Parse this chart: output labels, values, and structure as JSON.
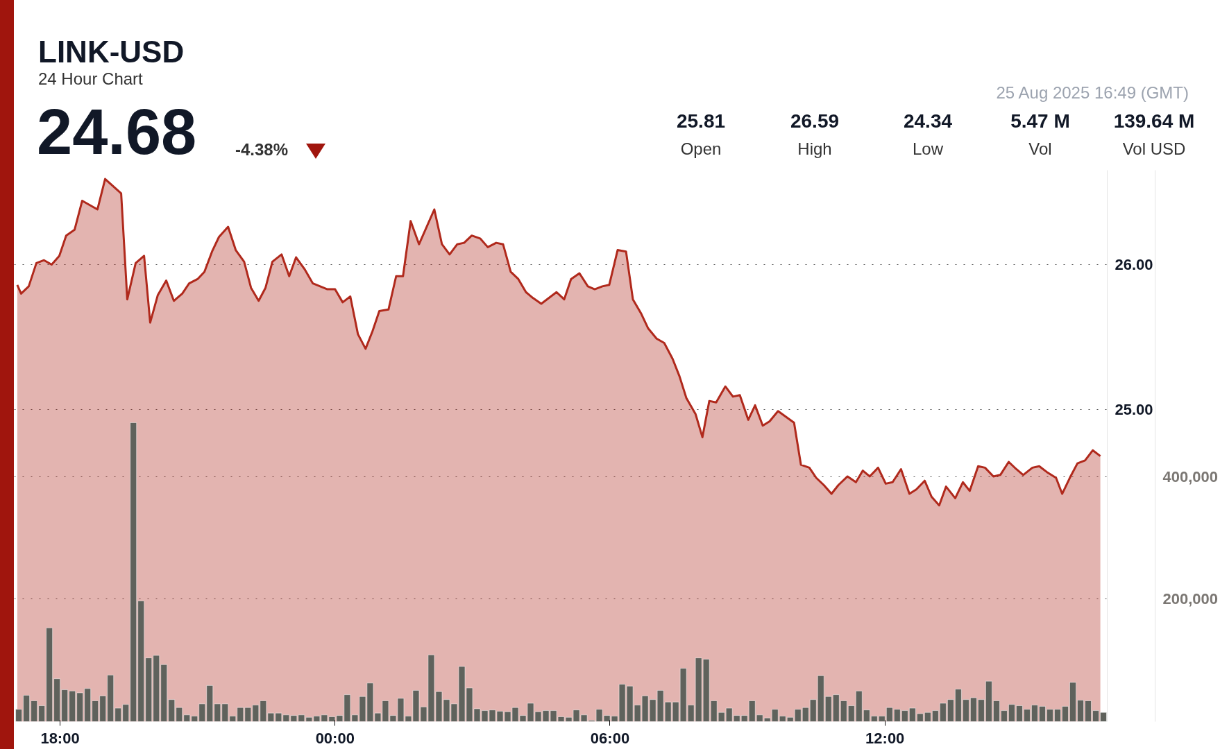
{
  "chart_data": {
    "type": "area",
    "title": "LINK-USD",
    "subtitle": "24 Hour Chart",
    "annotations": [
      "24.68",
      "-4.38%",
      "25 Aug 2025 16:49 (GMT)",
      "25.81",
      "Open",
      "26.59",
      "High",
      "24.34",
      "Low",
      "5.47 M",
      "Vol",
      "139.64 M",
      "Vol USD"
    ],
    "xlim": [
      "2025-08-24T17:00",
      "2025-08-25T16:51"
    ],
    "ylim": [
      22.85,
      26.65
    ],
    "y2lim": [
      0,
      900000
    ],
    "xticks": [
      {
        "value": "2025-08-24T18:00",
        "label": "18:00"
      },
      {
        "value": "2025-08-25T00:00",
        "label": "00:00"
      },
      {
        "value": "2025-08-25T06:00",
        "label": "06:00"
      },
      {
        "value": "2025-08-25T12:00",
        "label": "12:00"
      }
    ],
    "yticks": [
      {
        "value": 25,
        "label": "25.00"
      },
      {
        "value": 26,
        "label": "26.00"
      }
    ],
    "y2ticks": [
      {
        "value": 200000,
        "label": "200,000"
      },
      {
        "value": 400000,
        "label": "400,000"
      }
    ],
    "grid": "y",
    "line_style": "solid",
    "series": [
      {
        "color": "#b0291c",
        "x": [
          "2025-08-24T17:04",
          "2025-08-24T17:09",
          "2025-08-24T17:19",
          "2025-08-24T17:29",
          "2025-08-24T17:39",
          "2025-08-24T17:49",
          "2025-08-24T17:59",
          "2025-08-24T18:08",
          "2025-08-24T18:19",
          "2025-08-24T18:29",
          "2025-08-24T18:49",
          "2025-08-24T18:59",
          "2025-08-24T19:20",
          "2025-08-24T19:28",
          "2025-08-24T19:39",
          "2025-08-24T19:50",
          "2025-08-24T19:58",
          "2025-08-24T20:08",
          "2025-08-24T20:19",
          "2025-08-24T20:29",
          "2025-08-24T20:40",
          "2025-08-24T20:49",
          "2025-08-24T21:00",
          "2025-08-24T21:09",
          "2025-08-24T21:19",
          "2025-08-24T21:28",
          "2025-08-24T21:40",
          "2025-08-24T21:50",
          "2025-08-24T22:01",
          "2025-08-24T22:10",
          "2025-08-24T22:20",
          "2025-08-24T22:29",
          "2025-08-24T22:38",
          "2025-08-24T22:50",
          "2025-08-24T23:00",
          "2025-08-24T23:09",
          "2025-08-24T23:20",
          "2025-08-24T23:31",
          "2025-08-24T23:50",
          "2025-08-25T00:00",
          "2025-08-25T00:10",
          "2025-08-25T00:20",
          "2025-08-25T00:30",
          "2025-08-25T00:40",
          "2025-08-25T00:49",
          "2025-08-25T00:58",
          "2025-08-25T01:10",
          "2025-08-25T01:20",
          "2025-08-25T01:29",
          "2025-08-25T01:39",
          "2025-08-25T01:50",
          "2025-08-25T02:10",
          "2025-08-25T02:20",
          "2025-08-25T02:30",
          "2025-08-25T02:40",
          "2025-08-25T02:49",
          "2025-08-25T02:59",
          "2025-08-25T03:10",
          "2025-08-25T03:20",
          "2025-08-25T03:31",
          "2025-08-25T03:40",
          "2025-08-25T03:50",
          "2025-08-25T04:00",
          "2025-08-25T04:10",
          "2025-08-25T04:19",
          "2025-08-25T04:30",
          "2025-08-25T04:50",
          "2025-08-25T05:00",
          "2025-08-25T05:09",
          "2025-08-25T05:20",
          "2025-08-25T05:31",
          "2025-08-25T05:40",
          "2025-08-25T05:50",
          "2025-08-25T05:59",
          "2025-08-25T06:10",
          "2025-08-25T06:21",
          "2025-08-25T06:30",
          "2025-08-25T06:41",
          "2025-08-25T06:50",
          "2025-08-25T07:01",
          "2025-08-25T07:11",
          "2025-08-25T07:22",
          "2025-08-25T07:31",
          "2025-08-25T07:40",
          "2025-08-25T07:52",
          "2025-08-25T08:01",
          "2025-08-25T08:10",
          "2025-08-25T08:19",
          "2025-08-25T08:31",
          "2025-08-25T08:41",
          "2025-08-25T08:50",
          "2025-08-25T09:01",
          "2025-08-25T09:10",
          "2025-08-25T09:20",
          "2025-08-25T09:29",
          "2025-08-25T09:40",
          "2025-08-25T10:01",
          "2025-08-25T10:10",
          "2025-08-25T10:21",
          "2025-08-25T10:30",
          "2025-08-25T10:40",
          "2025-08-25T10:50",
          "2025-08-25T10:59",
          "2025-08-25T11:11",
          "2025-08-25T11:22",
          "2025-08-25T11:31",
          "2025-08-25T11:40",
          "2025-08-25T11:51",
          "2025-08-25T12:01",
          "2025-08-25T12:10",
          "2025-08-25T12:21",
          "2025-08-25T12:32",
          "2025-08-25T12:41",
          "2025-08-25T12:52",
          "2025-08-25T13:01",
          "2025-08-25T13:11",
          "2025-08-25T13:20",
          "2025-08-25T13:32",
          "2025-08-25T13:42",
          "2025-08-25T13:51",
          "2025-08-25T14:02",
          "2025-08-25T14:11",
          "2025-08-25T14:22",
          "2025-08-25T14:31",
          "2025-08-25T14:42",
          "2025-08-25T14:52",
          "2025-08-25T15:01",
          "2025-08-25T15:13",
          "2025-08-25T15:22",
          "2025-08-25T15:32",
          "2025-08-25T15:44",
          "2025-08-25T15:52",
          "2025-08-25T16:02",
          "2025-08-25T16:12",
          "2025-08-25T16:22",
          "2025-08-25T16:32",
          "2025-08-25T16:42"
        ],
        "values": [
          25.86,
          25.8,
          25.85,
          26.01,
          26.03,
          26.0,
          26.06,
          26.2,
          26.24,
          26.44,
          26.38,
          26.59,
          26.49,
          25.76,
          26.01,
          26.06,
          25.6,
          25.79,
          25.89,
          25.75,
          25.8,
          25.87,
          25.9,
          25.95,
          26.09,
          26.19,
          26.26,
          26.1,
          26.02,
          25.84,
          25.75,
          25.84,
          26.02,
          26.07,
          25.92,
          26.05,
          25.97,
          25.87,
          25.83,
          25.83,
          25.74,
          25.78,
          25.52,
          25.42,
          25.54,
          25.68,
          25.69,
          25.92,
          25.92,
          26.3,
          26.14,
          26.38,
          26.14,
          26.07,
          26.14,
          26.15,
          26.2,
          26.18,
          26.12,
          26.15,
          26.14,
          25.95,
          25.9,
          25.81,
          25.77,
          25.73,
          25.81,
          25.76,
          25.9,
          25.94,
          25.85,
          25.83,
          25.85,
          25.86,
          26.1,
          26.09,
          25.76,
          25.66,
          25.56,
          25.49,
          25.46,
          25.35,
          25.23,
          25.08,
          24.97,
          24.81,
          25.06,
          25.05,
          25.16,
          25.09,
          25.1,
          24.93,
          25.03,
          24.89,
          24.92,
          24.99,
          24.91,
          24.62,
          24.6,
          24.53,
          24.48,
          24.42,
          24.48,
          24.54,
          24.5,
          24.58,
          24.54,
          24.6,
          24.49,
          24.5,
          24.59,
          24.42,
          24.45,
          24.51,
          24.4,
          24.34,
          24.47,
          24.39,
          24.5,
          24.44,
          24.61,
          24.6,
          24.54,
          24.55,
          24.64,
          24.59,
          24.55,
          24.6,
          24.61,
          24.57,
          24.53,
          24.42,
          24.53,
          24.63,
          24.65,
          24.72,
          24.68
        ]
      },
      {
        "type": "bar",
        "axis": "y2",
        "color": "#5f625c",
        "x": [
          "2025-08-24T17:06",
          "2025-08-24T17:16",
          "2025-08-24T17:26",
          "2025-08-24T17:36",
          "2025-08-24T17:46",
          "2025-08-24T17:56",
          "2025-08-24T18:06",
          "2025-08-24T18:16",
          "2025-08-24T18:26",
          "2025-08-24T18:36",
          "2025-08-24T18:46",
          "2025-08-24T18:56",
          "2025-08-24T19:06",
          "2025-08-24T19:16",
          "2025-08-24T19:26",
          "2025-08-24T19:36",
          "2025-08-24T19:46",
          "2025-08-24T19:56",
          "2025-08-24T20:06",
          "2025-08-24T20:16",
          "2025-08-24T20:26",
          "2025-08-24T20:36",
          "2025-08-24T20:46",
          "2025-08-24T20:56",
          "2025-08-24T21:06",
          "2025-08-24T21:16",
          "2025-08-24T21:26",
          "2025-08-24T21:36",
          "2025-08-24T21:46",
          "2025-08-24T21:56",
          "2025-08-24T22:06",
          "2025-08-24T22:16",
          "2025-08-24T22:26",
          "2025-08-24T22:36",
          "2025-08-24T22:46",
          "2025-08-24T22:56",
          "2025-08-24T23:06",
          "2025-08-24T23:16",
          "2025-08-24T23:26",
          "2025-08-24T23:36",
          "2025-08-24T23:46",
          "2025-08-24T23:56",
          "2025-08-25T00:06",
          "2025-08-25T00:16",
          "2025-08-25T00:26",
          "2025-08-25T00:36",
          "2025-08-25T00:46",
          "2025-08-25T00:56",
          "2025-08-25T01:06",
          "2025-08-25T01:16",
          "2025-08-25T01:26",
          "2025-08-25T01:36",
          "2025-08-25T01:46",
          "2025-08-25T01:56",
          "2025-08-25T02:06",
          "2025-08-25T02:16",
          "2025-08-25T02:26",
          "2025-08-25T02:36",
          "2025-08-25T02:46",
          "2025-08-25T02:56",
          "2025-08-25T03:06",
          "2025-08-25T03:16",
          "2025-08-25T03:26",
          "2025-08-25T03:36",
          "2025-08-25T03:46",
          "2025-08-25T03:56",
          "2025-08-25T04:06",
          "2025-08-25T04:16",
          "2025-08-25T04:26",
          "2025-08-25T04:36",
          "2025-08-25T04:46",
          "2025-08-25T04:56",
          "2025-08-25T05:06",
          "2025-08-25T05:16",
          "2025-08-25T05:26",
          "2025-08-25T05:36",
          "2025-08-25T05:46",
          "2025-08-25T05:56",
          "2025-08-25T06:06",
          "2025-08-25T06:16",
          "2025-08-25T06:26",
          "2025-08-25T06:36",
          "2025-08-25T06:46",
          "2025-08-25T06:56",
          "2025-08-25T07:06",
          "2025-08-25T07:16",
          "2025-08-25T07:26",
          "2025-08-25T07:36",
          "2025-08-25T07:46",
          "2025-08-25T07:56",
          "2025-08-25T08:06",
          "2025-08-25T08:16",
          "2025-08-25T08:26",
          "2025-08-25T08:36",
          "2025-08-25T08:46",
          "2025-08-25T08:56",
          "2025-08-25T09:06",
          "2025-08-25T09:16",
          "2025-08-25T09:26",
          "2025-08-25T09:36",
          "2025-08-25T09:46",
          "2025-08-25T09:56",
          "2025-08-25T10:06",
          "2025-08-25T10:16",
          "2025-08-25T10:26",
          "2025-08-25T10:36",
          "2025-08-25T10:46",
          "2025-08-25T10:56",
          "2025-08-25T11:06",
          "2025-08-25T11:16",
          "2025-08-25T11:26",
          "2025-08-25T11:36",
          "2025-08-25T11:46",
          "2025-08-25T11:56",
          "2025-08-25T12:06",
          "2025-08-25T12:16",
          "2025-08-25T12:26",
          "2025-08-25T12:36",
          "2025-08-25T12:46",
          "2025-08-25T12:56",
          "2025-08-25T13:06",
          "2025-08-25T13:16",
          "2025-08-25T13:26",
          "2025-08-25T13:36",
          "2025-08-25T13:46",
          "2025-08-25T13:56",
          "2025-08-25T14:06",
          "2025-08-25T14:16",
          "2025-08-25T14:26",
          "2025-08-25T14:36",
          "2025-08-25T14:46",
          "2025-08-25T14:56",
          "2025-08-25T15:06",
          "2025-08-25T15:16",
          "2025-08-25T15:26",
          "2025-08-25T15:36",
          "2025-08-25T15:46",
          "2025-08-25T15:56",
          "2025-08-25T16:06",
          "2025-08-25T16:16",
          "2025-08-25T16:26",
          "2025-08-25T16:36",
          "2025-08-25T16:46"
        ],
        "values": [
          20000,
          43000,
          34000,
          26000,
          153000,
          70000,
          52000,
          50000,
          47000,
          54000,
          34000,
          42000,
          76000,
          22000,
          28000,
          488000,
          197000,
          104000,
          108000,
          93000,
          36000,
          23000,
          11000,
          9000,
          29000,
          59000,
          29000,
          29000,
          9000,
          23000,
          23000,
          27000,
          34000,
          14000,
          14000,
          11000,
          10000,
          11000,
          7000,
          9000,
          11000,
          8000,
          10000,
          44000,
          11000,
          41000,
          63000,
          14000,
          34000,
          10000,
          38000,
          9000,
          51000,
          24000,
          109000,
          49000,
          36000,
          29000,
          90000,
          55000,
          21000,
          18000,
          19000,
          17000,
          16000,
          23000,
          10000,
          30000,
          16000,
          18000,
          18000,
          8000,
          7000,
          19000,
          11000,
          2000,
          20000,
          10000,
          9000,
          61000,
          58000,
          27000,
          42000,
          36000,
          51000,
          32000,
          32000,
          87000,
          27000,
          104000,
          102000,
          34000,
          15000,
          22000,
          10000,
          10000,
          34000,
          11000,
          6000,
          20000,
          9000,
          7000,
          20000,
          23000,
          36000,
          75000,
          41000,
          44000,
          34000,
          26000,
          50000,
          19000,
          9000,
          9000,
          23000,
          20000,
          18000,
          22000,
          13000,
          15000,
          18000,
          30000,
          36000,
          53000,
          36000,
          39000,
          36000,
          66000,
          34000,
          18000,
          28000,
          26000,
          20000,
          27000,
          25000,
          20000,
          20000,
          25000,
          64000,
          35000,
          34000,
          18000,
          15000
        ]
      }
    ]
  }
}
